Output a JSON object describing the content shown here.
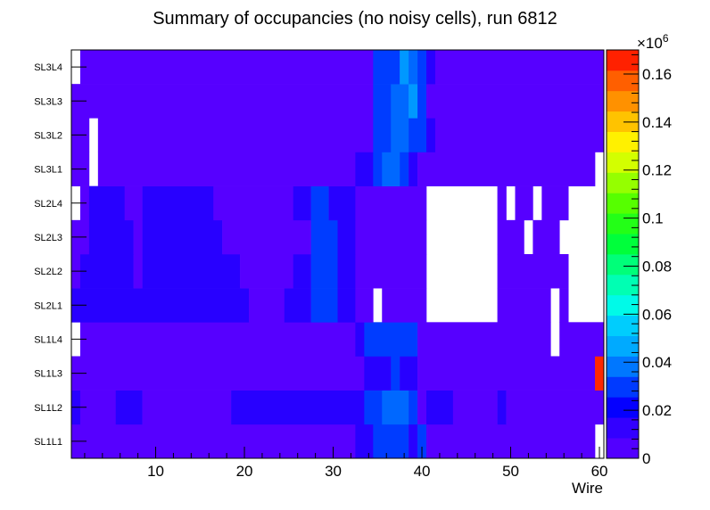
{
  "chart_data": {
    "type": "heatmap",
    "title": "Summary of occupancies (no noisy cells), run 6812",
    "xlabel": "Wire",
    "ylabel": "",
    "x_range": [
      0.5,
      60.5
    ],
    "x_ticks": [
      10,
      20,
      30,
      40,
      50,
      60
    ],
    "rows": [
      "SL1L1",
      "SL1L2",
      "SL1L3",
      "SL1L4",
      "SL2L1",
      "SL2L2",
      "SL2L3",
      "SL2L4",
      "SL3L1",
      "SL3L2",
      "SL3L3",
      "SL3L4"
    ],
    "z_range": [
      0,
      0.17
    ],
    "z_multiplier": "×10",
    "z_exponent": "6",
    "z_ticks": [
      0,
      0.02,
      0.04,
      0.06,
      0.08,
      0.1,
      0.12,
      0.14,
      0.16
    ],
    "z_tick_labels": [
      "0",
      "0.02",
      "0.04",
      "0.06",
      "0.08",
      "0.1",
      "0.12",
      "0.14",
      "0.16"
    ],
    "value_levels": {
      "L0": 0.003,
      "L1": 0.015,
      "L2": 0.03,
      "L3": 0.036,
      "L4": 0.043,
      "L5": 0.165
    },
    "cells": [
      [
        [
          "L0",
          1,
          32
        ],
        [
          "L1",
          33,
          34
        ],
        [
          "L2",
          35,
          38
        ],
        [
          "L1",
          39,
          39
        ],
        [
          "L2",
          40,
          40
        ],
        [
          "L0",
          41,
          59
        ],
        [
          "empty",
          60,
          60
        ]
      ],
      [
        [
          "L1",
          1,
          1
        ],
        [
          "L0",
          2,
          5
        ],
        [
          "L1",
          6,
          8
        ],
        [
          "L0",
          9,
          18
        ],
        [
          "L1",
          19,
          33
        ],
        [
          "L2",
          34,
          35
        ],
        [
          "L3",
          36,
          38
        ],
        [
          "L2",
          39,
          39
        ],
        [
          "L0",
          40,
          40
        ],
        [
          "L1",
          41,
          43
        ],
        [
          "L0",
          44,
          48
        ],
        [
          "L1",
          49,
          49
        ],
        [
          "L0",
          50,
          60
        ]
      ],
      [
        [
          "L0",
          1,
          33
        ],
        [
          "L1",
          34,
          36
        ],
        [
          "L2",
          37,
          37
        ],
        [
          "L1",
          38,
          39
        ],
        [
          "L0",
          40,
          59
        ],
        [
          "L5",
          60,
          60
        ]
      ],
      [
        [
          "empty",
          1,
          1
        ],
        [
          "L0",
          2,
          32
        ],
        [
          "L1",
          33,
          33
        ],
        [
          "L2",
          34,
          39
        ],
        [
          "L0",
          40,
          54
        ],
        [
          "empty",
          55,
          55
        ],
        [
          "L0",
          56,
          60
        ]
      ],
      [
        [
          "L1",
          1,
          20
        ],
        [
          "L0",
          21,
          24
        ],
        [
          "L1",
          25,
          27
        ],
        [
          "L2",
          28,
          30
        ],
        [
          "L1",
          31,
          32
        ],
        [
          "L0",
          33,
          34
        ],
        [
          "empty",
          35,
          35
        ],
        [
          "L0",
          36,
          40
        ],
        [
          "empty",
          41,
          48
        ],
        [
          "L0",
          49,
          54
        ],
        [
          "empty",
          55,
          55
        ],
        [
          "L0",
          56,
          56
        ],
        [
          "empty",
          57,
          60
        ]
      ],
      [
        [
          "L0",
          1,
          1
        ],
        [
          "L1",
          2,
          7
        ],
        [
          "L0",
          8,
          8
        ],
        [
          "L1",
          9,
          19
        ],
        [
          "L0",
          20,
          25
        ],
        [
          "L1",
          26,
          27
        ],
        [
          "L2",
          28,
          30
        ],
        [
          "L1",
          31,
          32
        ],
        [
          "L0",
          33,
          40
        ],
        [
          "empty",
          41,
          48
        ],
        [
          "L0",
          49,
          56
        ],
        [
          "empty",
          57,
          60
        ]
      ],
      [
        [
          "L0",
          1,
          2
        ],
        [
          "L1",
          3,
          7
        ],
        [
          "L0",
          8,
          8
        ],
        [
          "L1",
          9,
          17
        ],
        [
          "L0",
          18,
          27
        ],
        [
          "L2",
          28,
          30
        ],
        [
          "L1",
          31,
          32
        ],
        [
          "L0",
          33,
          40
        ],
        [
          "empty",
          41,
          48
        ],
        [
          "L0",
          49,
          51
        ],
        [
          "empty",
          52,
          52
        ],
        [
          "L0",
          53,
          55
        ],
        [
          "empty",
          56,
          60
        ]
      ],
      [
        [
          "empty",
          1,
          1
        ],
        [
          "L0",
          2,
          2
        ],
        [
          "L1",
          3,
          6
        ],
        [
          "L0",
          7,
          8
        ],
        [
          "L1",
          9,
          16
        ],
        [
          "L0",
          17,
          25
        ],
        [
          "L1",
          26,
          27
        ],
        [
          "L2",
          28,
          29
        ],
        [
          "L1",
          30,
          32
        ],
        [
          "L0",
          33,
          40
        ],
        [
          "empty",
          41,
          48
        ],
        [
          "L0",
          49,
          49
        ],
        [
          "empty",
          50,
          50
        ],
        [
          "L0",
          51,
          52
        ],
        [
          "empty",
          53,
          53
        ],
        [
          "L0",
          54,
          56
        ],
        [
          "empty",
          57,
          60
        ]
      ],
      [
        [
          "L0",
          1,
          2
        ],
        [
          "empty",
          3,
          3
        ],
        [
          "L0",
          4,
          32
        ],
        [
          "L1",
          33,
          34
        ],
        [
          "L2",
          35,
          35
        ],
        [
          "L3",
          36,
          37
        ],
        [
          "L2",
          38,
          38
        ],
        [
          "L1",
          39,
          39
        ],
        [
          "L0",
          40,
          59
        ],
        [
          "empty",
          60,
          60
        ]
      ],
      [
        [
          "L0",
          1,
          2
        ],
        [
          "empty",
          3,
          3
        ],
        [
          "L0",
          4,
          34
        ],
        [
          "L2",
          35,
          36
        ],
        [
          "L3",
          37,
          38
        ],
        [
          "L2",
          39,
          40
        ],
        [
          "L1",
          41,
          41
        ],
        [
          "L0",
          42,
          60
        ]
      ],
      [
        [
          "L0",
          1,
          34
        ],
        [
          "L2",
          35,
          36
        ],
        [
          "L3",
          37,
          38
        ],
        [
          "L4",
          39,
          39
        ],
        [
          "L2",
          40,
          40
        ],
        [
          "L0",
          41,
          60
        ]
      ],
      [
        [
          "empty",
          1,
          1
        ],
        [
          "L0",
          2,
          34
        ],
        [
          "L2",
          35,
          37
        ],
        [
          "L4",
          38,
          38
        ],
        [
          "L3",
          39,
          39
        ],
        [
          "L2",
          40,
          40
        ],
        [
          "L1",
          41,
          41
        ],
        [
          "L0",
          42,
          60
        ]
      ]
    ]
  }
}
